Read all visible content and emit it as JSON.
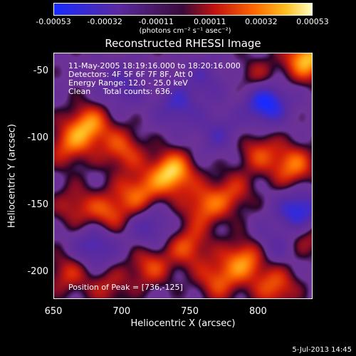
{
  "colorbar": {
    "ticks": [
      "-0.00053",
      "-0.00032",
      "-0.00011",
      "0.00011",
      "0.00032",
      "0.00053"
    ],
    "units": "(photons cm⁻² s⁻¹ asec⁻²)"
  },
  "plot": {
    "title": "Reconstructed RHESSI Image",
    "info": [
      "11-May-2005 18:19:16.000 to 18:20:16.000",
      "Detectors: 4F 5F 6F 7F 8F, Att 0",
      "Energy Range: 12.0 - 25.0 keV",
      "Clean     Total counts: 636."
    ],
    "peak_label": "Position of Peak = [736,-125]",
    "xlabel": "Heliocentric X (arcsec)",
    "ylabel": "Heliocentric Y (arcsec)",
    "xticks": [
      "650",
      "700",
      "750",
      "800"
    ],
    "yticks": [
      "-50",
      "-100",
      "-150",
      "-200"
    ]
  },
  "timestamp": "5-Jul-2013 14:45",
  "colors": {
    "min": "#1a2aff",
    "mid_low": "#5a2aa0",
    "zero": "#3a0a3a",
    "mid_high": "#ff4a00",
    "max": "#ffffc0"
  },
  "chart_data": {
    "type": "heatmap",
    "title": "Reconstructed RHESSI Image",
    "xlabel": "Heliocentric X (arcsec)",
    "ylabel": "Heliocentric Y (arcsec)",
    "xlim": [
      650,
      840
    ],
    "ylim": [
      -220,
      -36
    ],
    "clim": [
      -0.00053,
      0.00053
    ],
    "peak": [
      736,
      -125
    ],
    "blobs": [
      {
        "x": 736,
        "y": -125,
        "v": 0.00053
      },
      {
        "x": 675,
        "y": -90,
        "v": 0.00042
      },
      {
        "x": 660,
        "y": -105,
        "v": 0.00028
      },
      {
        "x": 700,
        "y": -108,
        "v": 0.0003
      },
      {
        "x": 712,
        "y": -140,
        "v": 0.00034
      },
      {
        "x": 690,
        "y": -155,
        "v": 0.0003
      },
      {
        "x": 665,
        "y": -150,
        "v": 0.00022
      },
      {
        "x": 760,
        "y": -150,
        "v": 0.00032
      },
      {
        "x": 748,
        "y": -180,
        "v": 0.0003
      },
      {
        "x": 720,
        "y": -195,
        "v": 0.00028
      },
      {
        "x": 790,
        "y": -190,
        "v": 0.0004
      },
      {
        "x": 770,
        "y": -205,
        "v": 0.0003
      },
      {
        "x": 812,
        "y": -210,
        "v": 0.00032
      },
      {
        "x": 835,
        "y": -40,
        "v": 0.0005
      },
      {
        "x": 800,
        "y": -55,
        "v": 0.00022
      },
      {
        "x": 825,
        "y": -120,
        "v": 0.00036
      },
      {
        "x": 800,
        "y": -110,
        "v": 0.00026
      },
      {
        "x": 780,
        "y": -140,
        "v": 0.00024
      },
      {
        "x": 835,
        "y": -170,
        "v": 0.00026
      },
      {
        "x": 660,
        "y": -200,
        "v": 0.00024
      },
      {
        "x": 690,
        "y": -210,
        "v": 0.0002
      },
      {
        "x": 805,
        "y": -72,
        "v": -0.0005
      },
      {
        "x": 830,
        "y": -155,
        "v": -0.00046
      },
      {
        "x": 700,
        "y": -60,
        "v": -0.00022
      },
      {
        "x": 740,
        "y": -75,
        "v": -0.00026
      },
      {
        "x": 770,
        "y": -95,
        "v": -0.0002
      },
      {
        "x": 680,
        "y": -180,
        "v": -0.0003
      },
      {
        "x": 720,
        "y": -165,
        "v": -0.00024
      },
      {
        "x": 760,
        "y": -55,
        "v": -0.00018
      },
      {
        "x": 810,
        "y": -180,
        "v": -0.00018
      }
    ]
  }
}
